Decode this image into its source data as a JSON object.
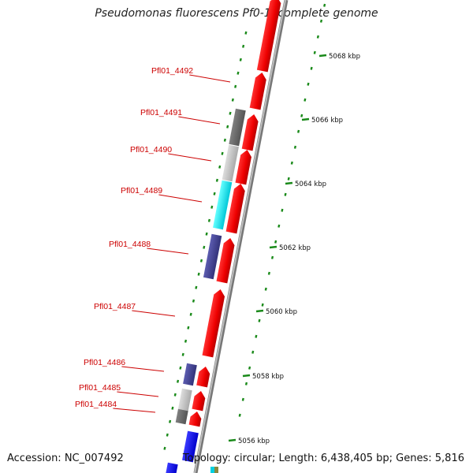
{
  "title": "Pseudomonas fluorescens Pf0-1, complete genome",
  "footer": {
    "accession": "Accession: NC_007492",
    "topology": "Topology: circular; Length: 6,438,405 bp; Genes: 5,816"
  },
  "colors": {
    "forward_cds": "#ee0000",
    "dark_gray_feature": "#666666",
    "light_gray_feature": "#bbbbbb",
    "cyan_feature": "#00e5f0",
    "slate_feature": "#4a4a99",
    "blue_feature": "#1111ee",
    "backbone": "#8a8a8a",
    "gc_dots": "#1a8a1a",
    "gene_label": "#cc0000"
  },
  "scale_ticks": [
    {
      "kbp": 5068,
      "label": "5068 kbp"
    },
    {
      "kbp": 5066,
      "label": "5066 kbp"
    },
    {
      "kbp": 5064,
      "label": "5064 kbp"
    },
    {
      "kbp": 5062,
      "label": "5062 kbp"
    },
    {
      "kbp": 5060,
      "label": "5060 kbp"
    },
    {
      "kbp": 5058,
      "label": "5058 kbp"
    },
    {
      "kbp": 5056,
      "label": "5056 kbp"
    }
  ],
  "gene_labels": [
    {
      "name": "Pfl01_4492"
    },
    {
      "name": "Pfl01_4491"
    },
    {
      "name": "Pfl01_4490"
    },
    {
      "name": "Pfl01_4489"
    },
    {
      "name": "Pfl01_4488"
    },
    {
      "name": "Pfl01_4487"
    },
    {
      "name": "Pfl01_4486"
    },
    {
      "name": "Pfl01_4485"
    },
    {
      "name": "Pfl01_4484"
    }
  ]
}
